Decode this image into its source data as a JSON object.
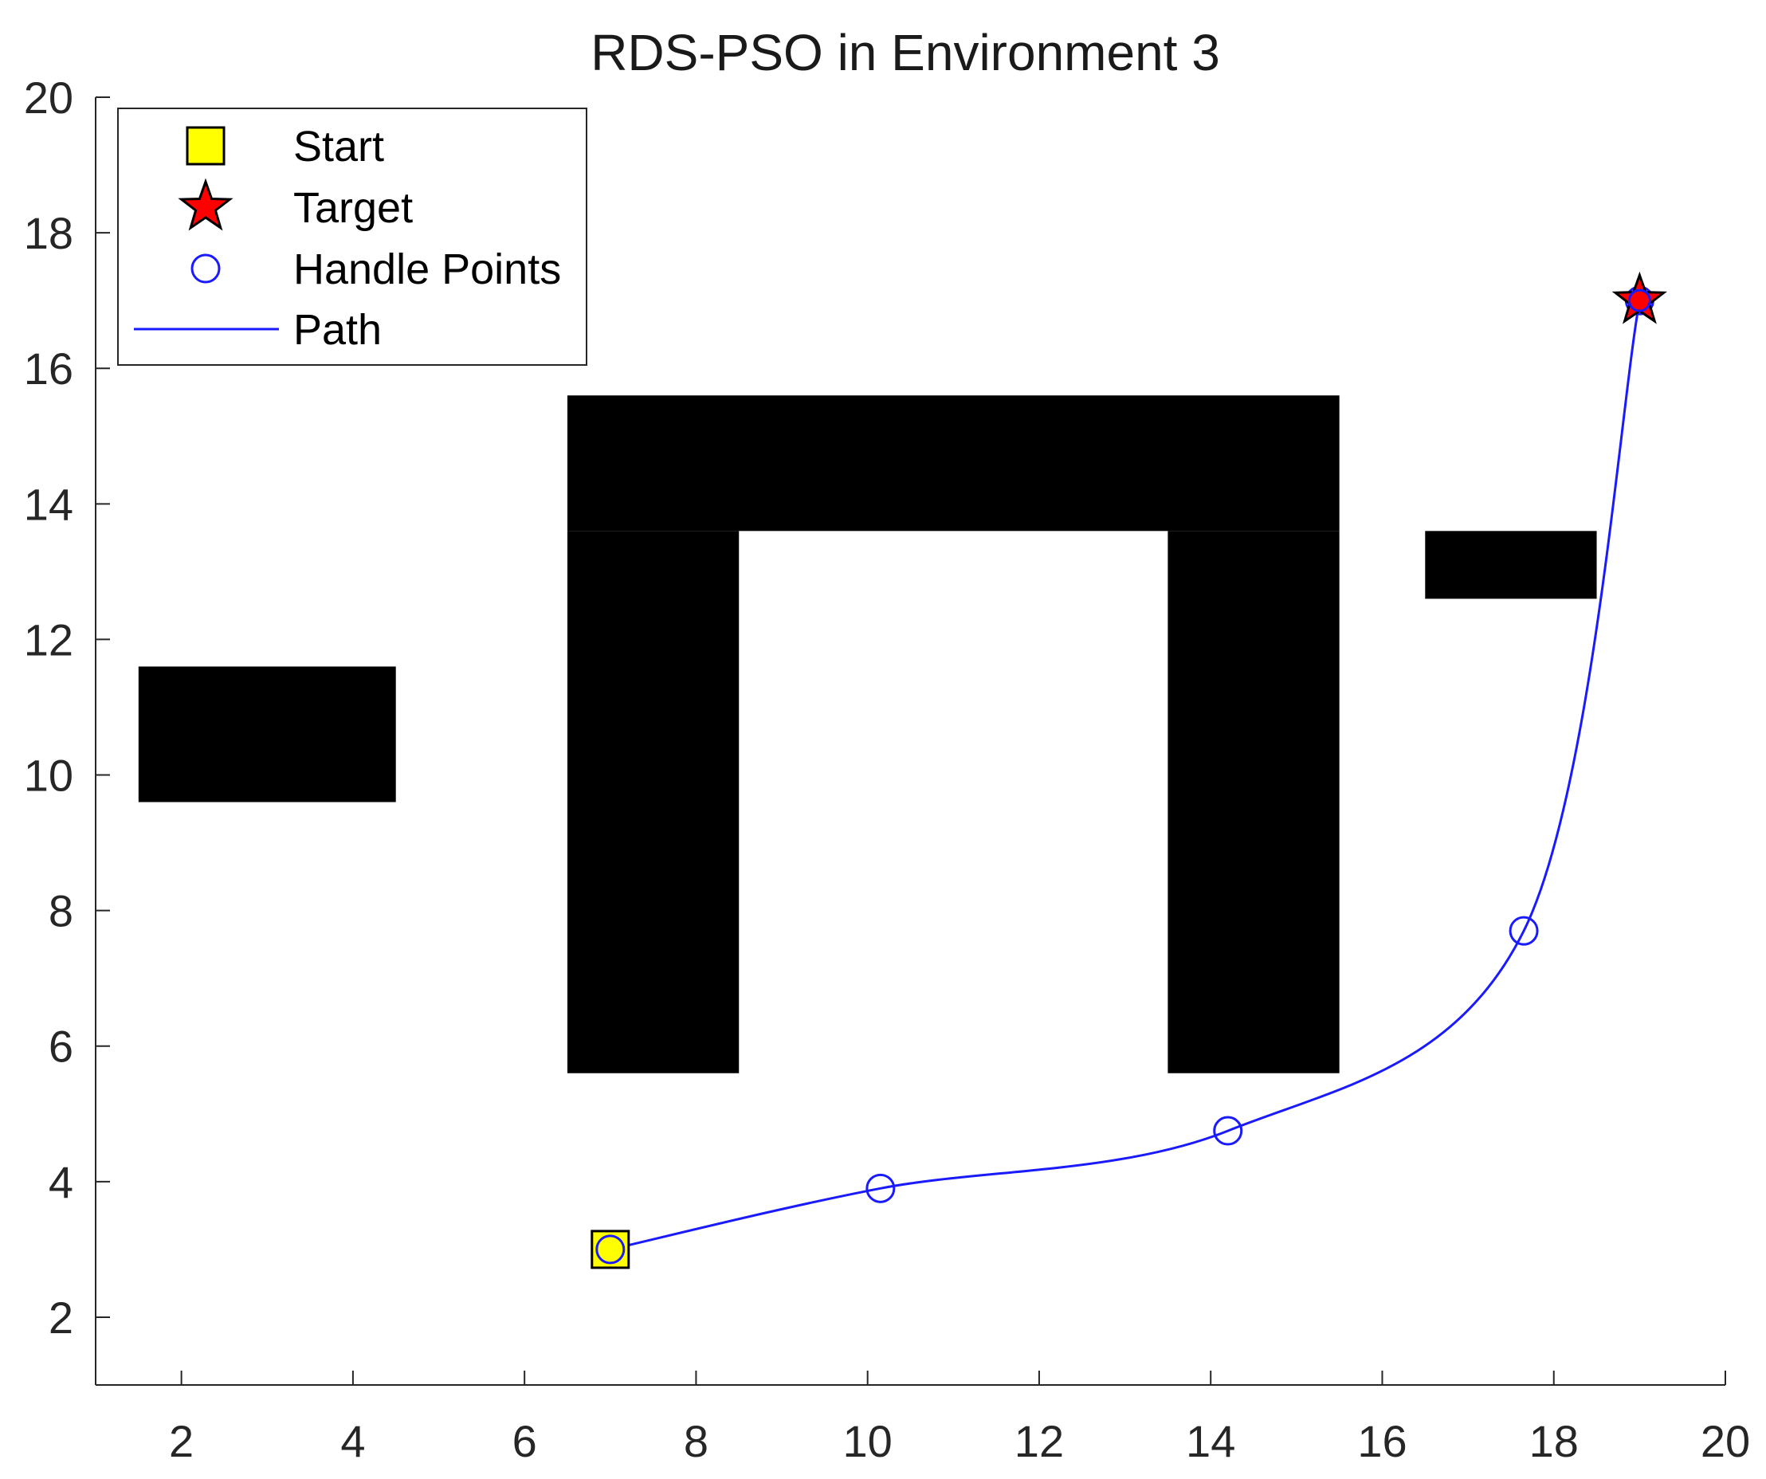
{
  "chart_data": {
    "type": "scatter",
    "title": "RDS-PSO in Environment 3",
    "xlabel": "",
    "ylabel": "",
    "xlim": [
      1,
      20
    ],
    "ylim": [
      1,
      20
    ],
    "xticks": [
      2,
      4,
      6,
      8,
      10,
      12,
      14,
      16,
      18,
      20
    ],
    "yticks": [
      2,
      4,
      6,
      8,
      10,
      12,
      14,
      16,
      18,
      20
    ],
    "grid": false,
    "legend_position": "top-left",
    "obstacles": [
      {
        "x0": 1.5,
        "x1": 4.5,
        "y0": 9.6,
        "y1": 11.6
      },
      {
        "x0": 6.5,
        "x1": 15.5,
        "y0": 13.6,
        "y1": 15.6
      },
      {
        "x0": 6.5,
        "x1": 8.5,
        "y0": 5.6,
        "y1": 13.6
      },
      {
        "x0": 13.5,
        "x1": 15.5,
        "y0": 5.6,
        "y1": 13.6
      },
      {
        "x0": 16.5,
        "x1": 18.5,
        "y0": 12.6,
        "y1": 13.6
      }
    ],
    "start": {
      "x": 7,
      "y": 3
    },
    "target": {
      "x": 19,
      "y": 17
    },
    "handle_points": [
      {
        "x": 7,
        "y": 3
      },
      {
        "x": 10.15,
        "y": 3.9
      },
      {
        "x": 14.2,
        "y": 4.75
      },
      {
        "x": 17.65,
        "y": 7.7
      },
      {
        "x": 19,
        "y": 17
      }
    ],
    "legend": [
      {
        "key": "start",
        "label": "Start"
      },
      {
        "key": "target",
        "label": "Target"
      },
      {
        "key": "handle",
        "label": "Handle Points"
      },
      {
        "key": "path",
        "label": "Path"
      }
    ],
    "colors": {
      "obstacle": "#000000",
      "path": "#1a1aff",
      "handle": "#1a1aff",
      "start_fill": "#ffff00",
      "target_fill": "#ff0000",
      "axis": "#262626"
    }
  }
}
